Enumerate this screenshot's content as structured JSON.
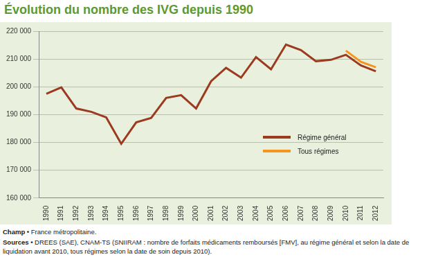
{
  "chart_data": {
    "type": "line",
    "title": "Évolution du nombre des IVG depuis 1990",
    "categories": [
      "1990",
      "1991",
      "1992",
      "1993",
      "1994",
      "1995",
      "1996",
      "1997",
      "1998",
      "1999",
      "2000",
      "2001",
      "2002",
      "2003",
      "2004",
      "2005",
      "2006",
      "2007",
      "2008",
      "2009",
      "2010",
      "2011",
      "2012"
    ],
    "series": [
      {
        "name": "Régime général",
        "color": "#9b3a1f",
        "values": [
          197500,
          199800,
          192200,
          191000,
          189000,
          179500,
          187200,
          188800,
          196000,
          197000,
          192200,
          202000,
          206800,
          203300,
          210700,
          206300,
          215200,
          213200,
          209200,
          209700,
          211500,
          207700,
          205600
        ]
      },
      {
        "name": "Tous régimes",
        "color": "#f7941d",
        "values": [
          null,
          null,
          null,
          null,
          null,
          null,
          null,
          null,
          null,
          null,
          null,
          null,
          null,
          null,
          null,
          null,
          null,
          null,
          null,
          null,
          213000,
          209000,
          207000
        ]
      }
    ],
    "ylim": [
      160000,
      220000
    ],
    "yticks": [
      {
        "value": 160000,
        "label": "160 000"
      },
      {
        "value": 170000,
        "label": "170 000"
      },
      {
        "value": 180000,
        "label": "180 000"
      },
      {
        "value": 190000,
        "label": "190 000"
      },
      {
        "value": 200000,
        "label": "200 000"
      },
      {
        "value": 210000,
        "label": "210 000"
      },
      {
        "value": 220000,
        "label": "220 000"
      }
    ],
    "grid": true,
    "legend": "right",
    "notes": [
      {
        "label": "Champ •",
        "text": "France métropolitaine."
      },
      {
        "label": "Sources •",
        "text": "DREES (SAE), CNAM-TS (SNIIRAM : nombre de forfaits médicaments remboursés [FMV], au régime général et selon la date de liquidation avant 2010, tous régimes selon la date de soin depuis 2010)."
      }
    ]
  }
}
